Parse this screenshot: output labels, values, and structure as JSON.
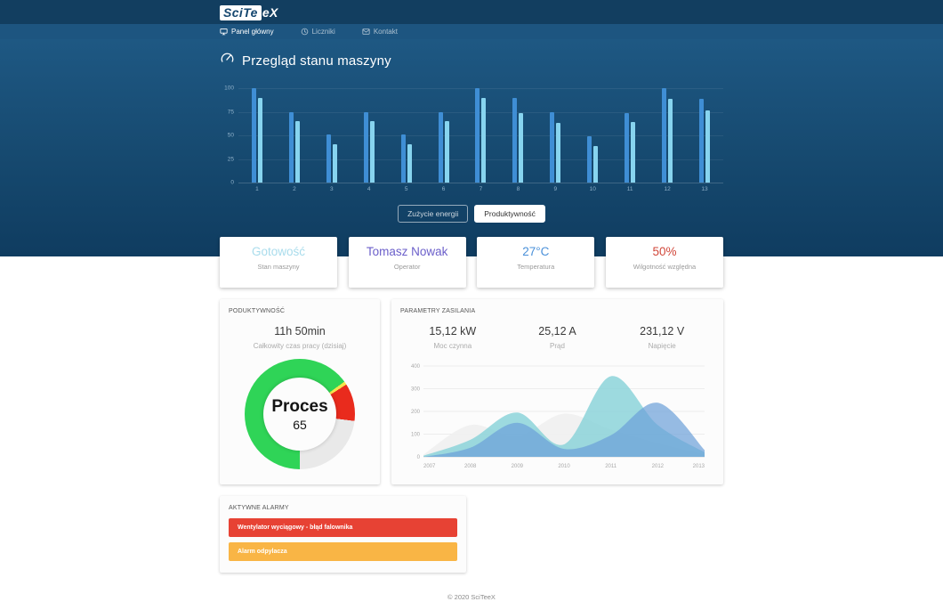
{
  "brand": {
    "logo_primary": "SciTe",
    "logo_secondary": "eX"
  },
  "nav": {
    "items": [
      {
        "label": "Panel główny",
        "icon": "display-icon",
        "active": true
      },
      {
        "label": "Liczniki",
        "icon": "clock-icon",
        "active": false
      },
      {
        "label": "Kontakt",
        "icon": "envelope-icon",
        "active": false
      }
    ]
  },
  "hero": {
    "title": "Przegląd stanu maszyny",
    "title_icon": "gauge-icon",
    "buttons": [
      {
        "label": "Zużycie energii",
        "active": false
      },
      {
        "label": "Produktywność",
        "active": true
      }
    ]
  },
  "cards": [
    {
      "value": "Gotowość",
      "label": "Stan maszyny",
      "color": "#a9dcec"
    },
    {
      "value": "Tomasz Nowak",
      "label": "Operator",
      "color": "#6b5fca"
    },
    {
      "value": "27°C",
      "label": "Temperatura",
      "color": "#4a90d9"
    },
    {
      "value": "50%",
      "label": "Wilgotność względna",
      "color": "#d1473a"
    }
  ],
  "productivity": {
    "header": "PODUKTYWNOŚĆ",
    "value": "11h 50min",
    "label": "Całkowity czas pracy (dzisiaj)"
  },
  "power": {
    "header": "PARAMETRY ZASILANIA",
    "stats": [
      {
        "value": "15,12 kW",
        "label": "Moc czynna"
      },
      {
        "value": "25,12 A",
        "label": "Prąd"
      },
      {
        "value": "231,12 V",
        "label": "Napięcie"
      }
    ]
  },
  "alarms": {
    "header": "AKTYWNE ALARMY",
    "items": [
      {
        "label": "Wentylator wyciągowy - błąd falownika",
        "color": "#e74234"
      },
      {
        "label": "Alarm odpylacza",
        "color": "#f9b545"
      }
    ]
  },
  "footer": {
    "text": "© 2020 SciTeeX"
  },
  "chart_data": [
    {
      "type": "bar",
      "title": "",
      "categories": [
        "1",
        "2",
        "3",
        "4",
        "5",
        "6",
        "7",
        "8",
        "9",
        "10",
        "11",
        "12",
        "13"
      ],
      "series": [
        {
          "name": "series-dark-blue",
          "color": "#3f8ed5",
          "values": [
            100,
            75,
            51,
            75,
            51,
            75,
            100,
            90,
            75,
            49,
            74,
            100,
            89
          ]
        },
        {
          "name": "series-light-blue",
          "color": "#87d4ef",
          "values": [
            90,
            65,
            41,
            65,
            41,
            65,
            90,
            74,
            63,
            39,
            64,
            89,
            76
          ]
        }
      ],
      "xlabel": "",
      "ylabel": "",
      "ylim": [
        0,
        100
      ],
      "yticks": [
        0,
        25,
        50,
        75,
        100
      ],
      "grid": true,
      "legend": "none"
    },
    {
      "type": "pie",
      "variant": "donut",
      "center_label": "Proces",
      "center_value": "65",
      "start_angle_deg": 180,
      "segments": [
        {
          "name": "green",
          "value": 65,
          "color": "#2fd457"
        },
        {
          "name": "yellow",
          "value": 1,
          "color": "#f6e44c"
        },
        {
          "name": "red",
          "value": 11,
          "color": "#e92b1d"
        },
        {
          "name": "gray",
          "value": 23,
          "color": "#e9e9e9"
        }
      ]
    },
    {
      "type": "area",
      "x": [
        2007,
        2008,
        2009,
        2010,
        2011,
        2012,
        2013
      ],
      "series": [
        {
          "name": "series-gray",
          "color": "#efefef",
          "opacity": 0.9,
          "values": [
            10,
            140,
            90,
            190,
            120,
            60,
            10
          ]
        },
        {
          "name": "series-teal",
          "color": "#7ecfd6",
          "opacity": 0.75,
          "values": [
            5,
            75,
            195,
            55,
            355,
            140,
            20
          ]
        },
        {
          "name": "series-blue",
          "color": "#6b9fd8",
          "opacity": 0.7,
          "values": [
            0,
            40,
            150,
            35,
            95,
            238,
            30
          ]
        }
      ],
      "xlabel": "",
      "ylabel": "",
      "ylim": [
        0,
        400
      ],
      "yticks": [
        0,
        100,
        200,
        300,
        400
      ],
      "grid": true,
      "legend": "none"
    }
  ]
}
